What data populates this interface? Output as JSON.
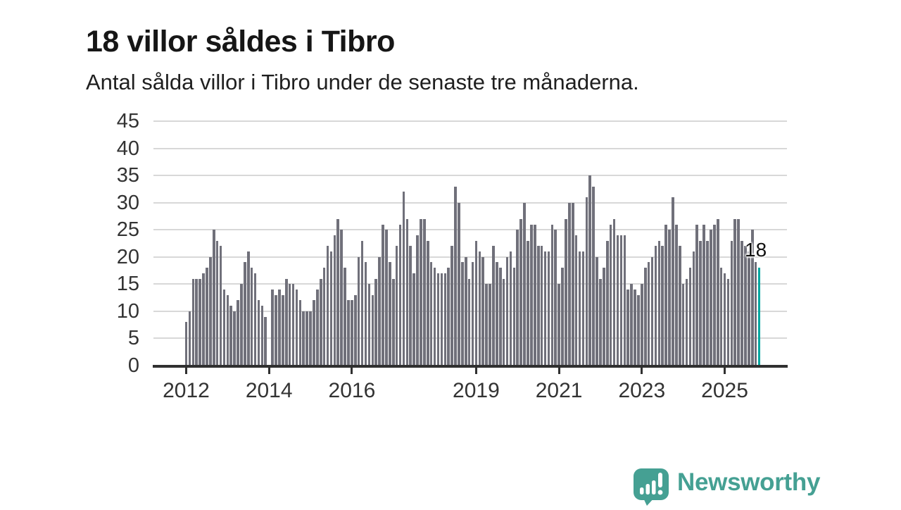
{
  "header": {
    "title": "18 villor såldes i Tibro",
    "subtitle": "Antal sålda villor i Tibro under de senaste tre månaderna."
  },
  "chart_data": {
    "type": "bar",
    "title": "18 villor såldes i Tibro",
    "subtitle": "Antal sålda villor i Tibro under de senaste tre månaderna.",
    "xlabel": "",
    "ylabel": "",
    "unit": "villor",
    "frequency": "monthly",
    "start_month": "2012-01",
    "end_month": "2025-11",
    "values": [
      8,
      10,
      16,
      16,
      16,
      17,
      18,
      20,
      25,
      23,
      22,
      14,
      13,
      11,
      10,
      12,
      15,
      19,
      21,
      18,
      17,
      12,
      11,
      9,
      0,
      14,
      13,
      14,
      13,
      16,
      15,
      15,
      14,
      12,
      10,
      10,
      10,
      12,
      14,
      16,
      18,
      22,
      21,
      24,
      27,
      25,
      18,
      12,
      12,
      13,
      20,
      23,
      19,
      15,
      13,
      16,
      20,
      26,
      25,
      19,
      16,
      22,
      26,
      32,
      27,
      22,
      17,
      24,
      27,
      27,
      23,
      19,
      18,
      17,
      17,
      17,
      18,
      22,
      33,
      30,
      19,
      20,
      16,
      19,
      23,
      21,
      20,
      15,
      15,
      22,
      19,
      18,
      16,
      20,
      21,
      18,
      25,
      27,
      30,
      23,
      26,
      26,
      22,
      22,
      21,
      21,
      26,
      25,
      15,
      18,
      27,
      30,
      30,
      24,
      21,
      21,
      31,
      35,
      33,
      20,
      16,
      18,
      23,
      26,
      27,
      24,
      24,
      24,
      14,
      15,
      14,
      13,
      15,
      18,
      19,
      20,
      22,
      23,
      22,
      26,
      25,
      31,
      26,
      22,
      15,
      16,
      18,
      21,
      26,
      23,
      26,
      23,
      25,
      26,
      27,
      18,
      17,
      16,
      23,
      27,
      27,
      23,
      22,
      21,
      25,
      19,
      18
    ],
    "ylim": [
      0,
      45
    ],
    "yticks": [
      0,
      5,
      10,
      15,
      20,
      25,
      30,
      35,
      40,
      45
    ],
    "xticks": [
      {
        "label": "2012",
        "month_index": 0
      },
      {
        "label": "2014",
        "month_index": 24
      },
      {
        "label": "2016",
        "month_index": 48
      },
      {
        "label": "2019",
        "month_index": 84
      },
      {
        "label": "2021",
        "month_index": 108
      },
      {
        "label": "2023",
        "month_index": 132
      },
      {
        "label": "2025",
        "month_index": 156
      }
    ],
    "grid": "horizontal",
    "legend": "none",
    "bar_color": "#70707a",
    "gridline_color": "#d8d8d8",
    "axis_color": "#303030",
    "label_color": "#333333",
    "highlight": {
      "month": "2025-11",
      "value": 18,
      "label": "18",
      "color": "#00a7a0"
    }
  },
  "footer": {
    "brand": "Newsworthy",
    "brand_color": "#45a093",
    "logo_icon": "speech-bubble-bar-chart-icon"
  }
}
